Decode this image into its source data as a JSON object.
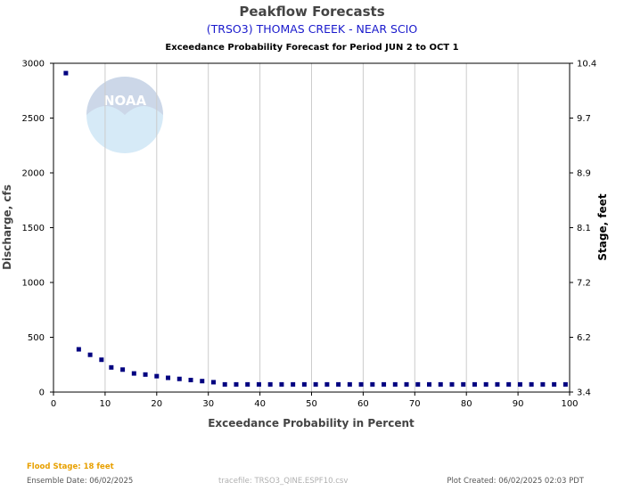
{
  "header": {
    "title": "Peakflow Forecasts",
    "station": "(TRSO3) THOMAS CREEK - NEAR SCIO",
    "subtitle": "Exceedance Probability Forecast for Period JUN 2 to OCT 1"
  },
  "colors": {
    "station": "#1a1acc",
    "marker": "#000080",
    "flood": "#e8a000",
    "grid": "#cccccc",
    "footer": "#555555",
    "tracefile": "#b0b0b0"
  },
  "footer": {
    "flood_stage": "Flood Stage: 18 feet",
    "ensemble_date": "Ensemble Date: 06/02/2025",
    "tracefile": "tracefile: TRSO3_QINE.ESPF10.csv",
    "plot_created": "Plot Created: 06/02/2025 02:03 PDT"
  },
  "logo": {
    "text": "NOAA",
    "icon": "noaa-logo-watermark"
  },
  "chart_data": {
    "type": "scatter",
    "xlabel": "Exceedance Probability in Percent",
    "ylabel": "Discharge, cfs",
    "y2label": "Stage, feet",
    "xlim": [
      0,
      100
    ],
    "ylim": [
      0,
      3000
    ],
    "grid": true,
    "xticks": [
      "0",
      "10",
      "20",
      "30",
      "40",
      "50",
      "60",
      "70",
      "80",
      "90",
      "100"
    ],
    "yticks": [
      "0",
      "500",
      "1000",
      "1500",
      "2000",
      "2500",
      "3000"
    ],
    "y2ticks": [
      "3.4",
      "6.2",
      "7.2",
      "8.1",
      "8.9",
      "9.7",
      "10.4"
    ],
    "series": [
      {
        "x": [
          2.4,
          4.9,
          7.1,
          9.3,
          11.2,
          13.4,
          15.6,
          17.8,
          20.0,
          22.2,
          24.4,
          26.6,
          28.8,
          31.0,
          33.2,
          35.4,
          37.6,
          39.8,
          42.0,
          44.2,
          46.4,
          48.6,
          50.8,
          53.0,
          55.2,
          57.4,
          59.6,
          61.8,
          64.0,
          66.2,
          68.4,
          70.6,
          72.8,
          75.0,
          77.2,
          79.4,
          81.6,
          83.8,
          86.0,
          88.2,
          90.4,
          92.6,
          94.8,
          97.0,
          99.2
        ],
        "y": [
          2910,
          390,
          340,
          295,
          225,
          205,
          170,
          160,
          145,
          130,
          120,
          110,
          100,
          90,
          70,
          70,
          70,
          70,
          70,
          70,
          70,
          70,
          70,
          70,
          70,
          70,
          70,
          70,
          70,
          70,
          70,
          70,
          70,
          70,
          70,
          70,
          70,
          70,
          70,
          70,
          70,
          70,
          70,
          70,
          70
        ]
      }
    ]
  }
}
